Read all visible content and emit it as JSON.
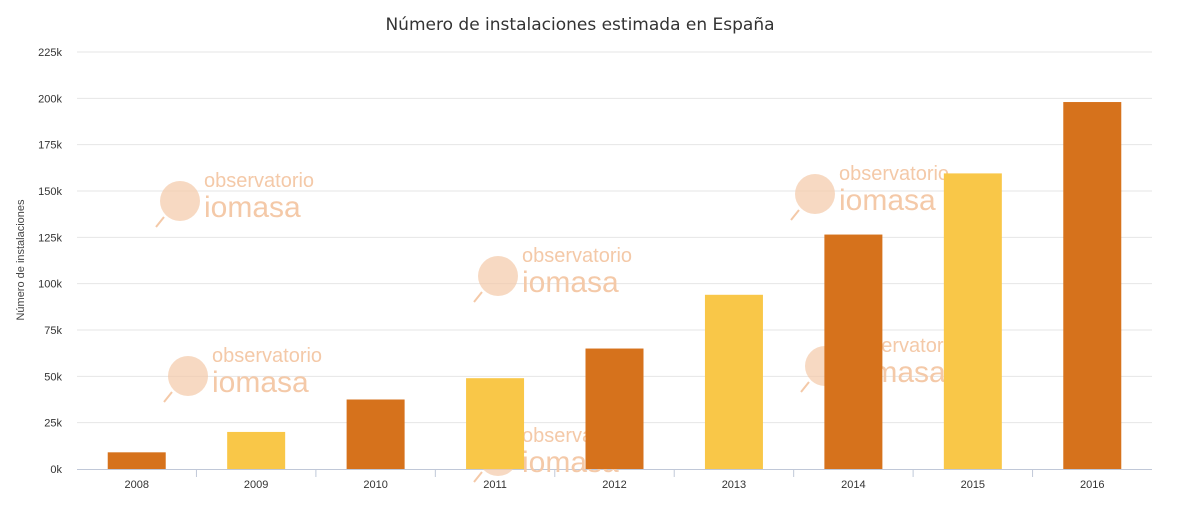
{
  "chart_data": {
    "type": "bar",
    "title": "Número de instalaciones estimada en España",
    "xlabel": "",
    "ylabel": "Número de instalaciones",
    "categories": [
      "2008",
      "2009",
      "2010",
      "2011",
      "2012",
      "2013",
      "2014",
      "2015",
      "2016"
    ],
    "values": [
      9000,
      20000,
      37500,
      49000,
      65000,
      94000,
      126500,
      159500,
      198000
    ],
    "bar_colors": [
      "#d6721c",
      "#f9c748",
      "#d6721c",
      "#f9c748",
      "#d6721c",
      "#f9c748",
      "#d6721c",
      "#f9c748",
      "#d6721c"
    ],
    "ylim": [
      0,
      225000
    ],
    "yticks": [
      0,
      25000,
      50000,
      75000,
      100000,
      125000,
      150000,
      175000,
      200000,
      225000
    ],
    "ytick_labels": [
      "0k",
      "25k",
      "50k",
      "75k",
      "100k",
      "125k",
      "150k",
      "175k",
      "200k",
      "225k"
    ],
    "grid": true,
    "legend": "none"
  },
  "watermark": {
    "line1": "observatorio",
    "line2": "iomasa"
  },
  "colors": {
    "dark_orange": "#d6721c",
    "yellow": "#f9c748",
    "grid": "#e6e6e6",
    "watermark": "#f4c9a8"
  }
}
